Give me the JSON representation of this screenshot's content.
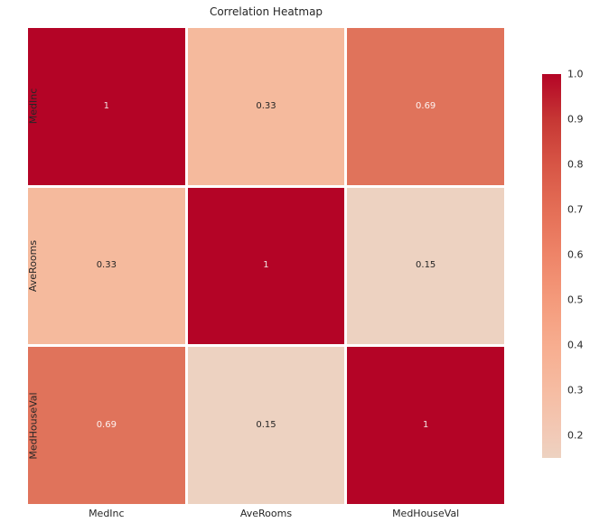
{
  "chart_data": {
    "type": "heatmap",
    "title": "Correlation Heatmap",
    "categories": [
      "MedInc",
      "AveRooms",
      "MedHouseVal"
    ],
    "matrix": [
      [
        1,
        0.33,
        0.69
      ],
      [
        0.33,
        1,
        0.15
      ],
      [
        0.69,
        0.15,
        1
      ]
    ],
    "cell_labels": [
      [
        "1",
        "0.33",
        "0.69"
      ],
      [
        "0.33",
        "1",
        "0.15"
      ],
      [
        "0.69",
        "0.15",
        "1"
      ]
    ],
    "cell_colors": [
      [
        "#b40426",
        "#f5ba9d",
        "#e0735b"
      ],
      [
        "#f5ba9d",
        "#b40426",
        "#edd2c1"
      ],
      [
        "#e0735b",
        "#edd2c1",
        "#b40426"
      ]
    ],
    "cell_text_colors": [
      [
        "#f0e4e3",
        "#262626",
        "#fdf3f1"
      ],
      [
        "#262626",
        "#f0e4e3",
        "#262626"
      ],
      [
        "#fdf3f1",
        "#262626",
        "#f0e4e3"
      ]
    ],
    "xlabel": "",
    "ylabel": "",
    "grid": false,
    "legend_position": "colorbar-right",
    "colorbar": {
      "vmin": 0.15,
      "vmax": 1.0,
      "ticks": [
        {
          "label": "1.0",
          "value": 1.0
        },
        {
          "label": "0.9",
          "value": 0.9
        },
        {
          "label": "0.8",
          "value": 0.8
        },
        {
          "label": "0.7",
          "value": 0.7
        },
        {
          "label": "0.6",
          "value": 0.6
        },
        {
          "label": "0.5",
          "value": 0.5
        },
        {
          "label": "0.4",
          "value": 0.4
        },
        {
          "label": "0.3",
          "value": 0.3
        },
        {
          "label": "0.2",
          "value": 0.2
        }
      ],
      "gradient": [
        {
          "pos": 0,
          "color": "#edd2c1"
        },
        {
          "pos": 5.9,
          "color": "#f2cab7"
        },
        {
          "pos": 17.6,
          "color": "#f6bca2"
        },
        {
          "pos": 29.4,
          "color": "#f7ad8f"
        },
        {
          "pos": 41.2,
          "color": "#f49a7b"
        },
        {
          "pos": 52.9,
          "color": "#ee8468"
        },
        {
          "pos": 64.7,
          "color": "#e46e56"
        },
        {
          "pos": 76.5,
          "color": "#d75545"
        },
        {
          "pos": 88.2,
          "color": "#c63734"
        },
        {
          "pos": 100,
          "color": "#b40426"
        }
      ]
    }
  },
  "colors": {
    "background": "#ffffff",
    "text": "#262626",
    "max_cell": "#b40426"
  }
}
